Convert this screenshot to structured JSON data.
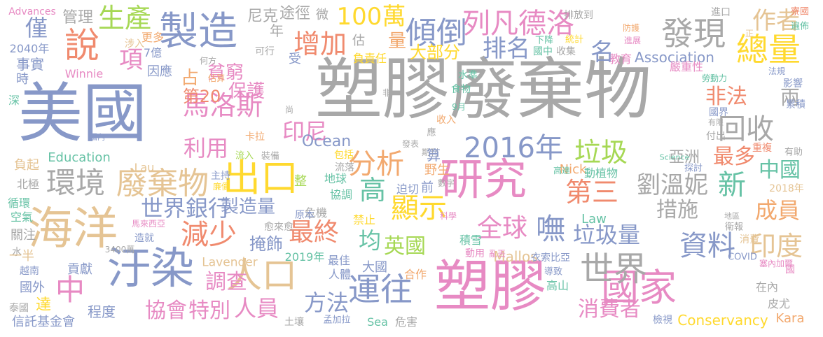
{
  "palette": {
    "gray": "#a8a8a8",
    "blue": "#8798c8",
    "salmon": "#f08a6e",
    "orange": "#f2a96f",
    "teal": "#66c2a5",
    "green": "#a6d854",
    "yellow": "#ffd92f",
    "tan": "#e5c494",
    "pink": "#e78ac3"
  },
  "words": [
    {
      "text": "塑膠廢棄物",
      "color": "gray"
    },
    {
      "text": "美國",
      "color": "blue"
    },
    {
      "text": "塑膠",
      "color": "pink"
    },
    {
      "text": "研究",
      "color": "pink"
    },
    {
      "text": "製造",
      "color": "blue"
    },
    {
      "text": "海洋",
      "color": "tan"
    },
    {
      "text": "汙染",
      "color": "blue"
    },
    {
      "text": "出口",
      "color": "yellow"
    },
    {
      "text": "國家",
      "color": "pink"
    },
    {
      "text": "世界",
      "color": "gray"
    },
    {
      "text": "廢棄物",
      "color": "tan"
    },
    {
      "text": "環境",
      "color": "gray"
    },
    {
      "text": "人口",
      "color": "tan"
    },
    {
      "text": "運往",
      "color": "blue"
    },
    {
      "text": "發現",
      "color": "gray"
    },
    {
      "text": "總量",
      "color": "yellow"
    },
    {
      "text": "說",
      "color": "salmon"
    },
    {
      "text": "生產",
      "color": "green"
    },
    {
      "text": "傾倒",
      "color": "blue"
    },
    {
      "text": "列凡德洛",
      "color": "pink"
    },
    {
      "text": "增加",
      "color": "salmon"
    },
    {
      "text": "100萬",
      "color": "yellow"
    },
    {
      "text": "作者",
      "color": "tan"
    },
    {
      "text": "2016年",
      "color": "blue"
    },
    {
      "text": "垃圾",
      "color": "green"
    },
    {
      "text": "分析",
      "color": "orange"
    },
    {
      "text": "高",
      "color": "teal"
    },
    {
      "text": "顯示",
      "color": "yellow"
    },
    {
      "text": "第三",
      "color": "salmon"
    },
    {
      "text": "劉溫妮",
      "color": "gray"
    },
    {
      "text": "新",
      "color": "teal"
    },
    {
      "text": "回收",
      "color": "gray"
    },
    {
      "text": "非法",
      "color": "salmon"
    },
    {
      "text": "中國",
      "color": "teal"
    },
    {
      "text": "最多",
      "color": "salmon"
    },
    {
      "text": "資料",
      "color": "blue"
    },
    {
      "text": "印度",
      "color": "tan"
    },
    {
      "text": "成員",
      "color": "orange"
    },
    {
      "text": "全球",
      "color": "pink"
    },
    {
      "text": "嘸",
      "color": "blue"
    },
    {
      "text": "垃圾量",
      "color": "blue"
    },
    {
      "text": "最終",
      "color": "salmon"
    },
    {
      "text": "減少",
      "color": "salmon"
    },
    {
      "text": "中",
      "color": "pink"
    },
    {
      "text": "世界銀行",
      "color": "blue"
    },
    {
      "text": "馬洛斯",
      "color": "pink"
    },
    {
      "text": "印尼",
      "color": "pink"
    },
    {
      "text": "利用",
      "color": "pink"
    },
    {
      "text": "調查",
      "color": "pink"
    },
    {
      "text": "協會",
      "color": "pink"
    },
    {
      "text": "特別",
      "color": "pink"
    },
    {
      "text": "人員",
      "color": "pink"
    },
    {
      "text": "方法",
      "color": "blue"
    },
    {
      "text": "消費者",
      "color": "pink"
    },
    {
      "text": "項",
      "color": "pink"
    },
    {
      "text": "貧窮",
      "color": "pink"
    },
    {
      "text": "保護",
      "color": "pink"
    },
    {
      "text": "第20",
      "color": "salmon"
    },
    {
      "text": "占",
      "color": "orange"
    },
    {
      "text": "名",
      "color": "blue"
    },
    {
      "text": "排名",
      "color": "blue"
    },
    {
      "text": "措施",
      "color": "gray"
    },
    {
      "text": "英國",
      "color": "green"
    },
    {
      "text": "均",
      "color": "teal"
    },
    {
      "text": "製造量",
      "color": "blue"
    },
    {
      "text": "掩飾",
      "color": "blue"
    },
    {
      "text": "大部分",
      "color": "yellow"
    },
    {
      "text": "僅",
      "color": "blue"
    },
    {
      "text": "管理",
      "color": "gray"
    },
    {
      "text": "尼克",
      "color": "gray"
    },
    {
      "text": "途徑",
      "color": "gray"
    },
    {
      "text": "微",
      "color": "gray"
    },
    {
      "text": "量",
      "color": "orange"
    },
    {
      "text": "年",
      "color": "gray"
    },
    {
      "text": "兩",
      "color": "gray"
    },
    {
      "text": "亞洲",
      "color": "gray"
    },
    {
      "text": "Ocean",
      "color": "blue"
    },
    {
      "text": "Education",
      "color": "teal"
    },
    {
      "text": "Association",
      "color": "blue"
    },
    {
      "text": "Conservancy",
      "color": "yellow"
    },
    {
      "text": "Lavender",
      "color": "tan"
    },
    {
      "text": "Mallos",
      "color": "tan"
    },
    {
      "text": "Nick",
      "color": "orange"
    },
    {
      "text": "Kara",
      "color": "orange"
    },
    {
      "text": "Law",
      "color": "teal"
    },
    {
      "text": "Sea",
      "color": "teal"
    },
    {
      "text": "Winnie",
      "color": "pink"
    },
    {
      "text": "Lau",
      "color": "tan"
    },
    {
      "text": "Advances",
      "color": "pink"
    },
    {
      "text": "2040年",
      "color": "blue"
    },
    {
      "text": "2019年",
      "color": "teal"
    },
    {
      "text": "2018年",
      "color": "tan"
    },
    {
      "text": "事實",
      "color": "blue"
    },
    {
      "text": "時",
      "color": "blue"
    },
    {
      "text": "深",
      "color": "teal"
    },
    {
      "text": "負起",
      "color": "tan"
    },
    {
      "text": "北極",
      "color": "gray"
    },
    {
      "text": "循環",
      "color": "teal"
    },
    {
      "text": "空氣",
      "color": "teal"
    },
    {
      "text": "關注",
      "color": "gray"
    },
    {
      "text": "水",
      "color": "gray"
    },
    {
      "text": "一半",
      "color": "tan"
    },
    {
      "text": "越南",
      "color": "blue"
    },
    {
      "text": "國外",
      "color": "blue"
    },
    {
      "text": "達",
      "color": "yellow"
    },
    {
      "text": "泰國",
      "color": "gray"
    },
    {
      "text": "信託基金會",
      "color": "blue"
    },
    {
      "text": "貢獻",
      "color": "blue"
    },
    {
      "text": "程度",
      "color": "blue"
    },
    {
      "text": "因應",
      "color": "blue"
    },
    {
      "text": "7億",
      "color": "blue"
    },
    {
      "text": "更多",
      "color": "orange"
    },
    {
      "text": "涉入",
      "color": "tan"
    },
    {
      "text": "何方",
      "color": "gray"
    },
    {
      "text": "可行",
      "color": "gray"
    },
    {
      "text": "估算",
      "color": "orange"
    },
    {
      "text": "估",
      "color": "gray"
    },
    {
      "text": "受",
      "color": "blue"
    },
    {
      "text": "負責任",
      "color": "yellow"
    },
    {
      "text": "尚",
      "color": "gray"
    },
    {
      "text": "非",
      "color": "gray"
    },
    {
      "text": "卡拉",
      "color": "orange"
    },
    {
      "text": "流入",
      "color": "green"
    },
    {
      "text": "裝備",
      "color": "gray"
    },
    {
      "text": "主持",
      "color": "blue"
    },
    {
      "text": "廉價",
      "color": "yellow"
    },
    {
      "text": "發表",
      "color": "gray"
    },
    {
      "text": "期刊",
      "color": "gray"
    },
    {
      "text": "應",
      "color": "gray"
    },
    {
      "text": "包括",
      "color": "yellow"
    },
    {
      "text": "流落",
      "color": "gray"
    },
    {
      "text": "算",
      "color": "blue"
    },
    {
      "text": "野生",
      "color": "orange"
    },
    {
      "text": "前",
      "color": "blue"
    },
    {
      "text": "迫切",
      "color": "blue"
    },
    {
      "text": "數字",
      "color": "gray"
    },
    {
      "text": "整",
      "color": "green"
    },
    {
      "text": "地球",
      "color": "teal"
    },
    {
      "text": "協調",
      "color": "teal"
    },
    {
      "text": "危機",
      "color": "gray"
    },
    {
      "text": "原本",
      "color": "blue"
    },
    {
      "text": "禁止",
      "color": "yellow"
    },
    {
      "text": "科學",
      "color": "pink"
    },
    {
      "text": "愈來愈",
      "color": "gray"
    },
    {
      "text": "積雪",
      "color": "teal"
    },
    {
      "text": "動用",
      "color": "pink"
    },
    {
      "text": "亂丟",
      "color": "pink"
    },
    {
      "text": "衣索比亞",
      "color": "blue"
    },
    {
      "text": "人體",
      "color": "blue"
    },
    {
      "text": "最佳",
      "color": "blue"
    },
    {
      "text": "合作",
      "color": "orange"
    },
    {
      "text": "大國",
      "color": "blue"
    },
    {
      "text": "高山",
      "color": "teal"
    },
    {
      "text": "導致",
      "color": "blue"
    },
    {
      "text": "土壤",
      "color": "gray"
    },
    {
      "text": "孟加拉",
      "color": "blue"
    },
    {
      "text": "危害",
      "color": "gray"
    },
    {
      "text": "檢視",
      "color": "blue"
    },
    {
      "text": "馬來西亞",
      "color": "pink"
    },
    {
      "text": "造就",
      "color": "blue"
    },
    {
      "text": "3400萬",
      "color": "gray"
    },
    {
      "text": "COVID",
      "color": "blue"
    },
    {
      "text": "塞內加爾",
      "color": "pink"
    },
    {
      "text": "國",
      "color": "pink"
    },
    {
      "text": "在內",
      "color": "gray"
    },
    {
      "text": "皮尤",
      "color": "gray"
    },
    {
      "text": "地區",
      "color": "gray"
    },
    {
      "text": "衛報",
      "color": "gray"
    },
    {
      "text": "消費",
      "color": "tan"
    },
    {
      "text": "動植物",
      "color": "teal"
    },
    {
      "text": "高達",
      "color": "teal"
    },
    {
      "text": "探討",
      "color": "blue"
    },
    {
      "text": "有助",
      "color": "gray"
    },
    {
      "text": "重複",
      "color": "salmon"
    },
    {
      "text": "付出",
      "color": "gray"
    },
    {
      "text": "有限",
      "color": "gray"
    },
    {
      "text": "國界",
      "color": "blue"
    },
    {
      "text": "累積",
      "color": "blue"
    },
    {
      "text": "影響",
      "color": "blue"
    },
    {
      "text": "法規",
      "color": "blue"
    },
    {
      "text": "勞動力",
      "color": "teal"
    },
    {
      "text": "嚴重性",
      "color": "pink"
    },
    {
      "text": "教育",
      "color": "pink"
    },
    {
      "text": "收集",
      "color": "gray"
    },
    {
      "text": "統計",
      "color": "yellow"
    },
    {
      "text": "下降",
      "color": "teal"
    },
    {
      "text": "國中",
      "color": "teal"
    },
    {
      "text": "排放到",
      "color": "gray"
    },
    {
      "text": "進口",
      "color": "gray"
    },
    {
      "text": "寮國",
      "color": "salmon"
    },
    {
      "text": "遍佈",
      "color": "teal"
    },
    {
      "text": "正",
      "color": "tan"
    },
    {
      "text": "防護",
      "color": "orange"
    },
    {
      "text": "進展",
      "color": "pink"
    },
    {
      "text": "水準",
      "color": "teal"
    },
    {
      "text": "食物",
      "color": "teal"
    },
    {
      "text": "9月",
      "color": "teal"
    },
    {
      "text": "收入",
      "color": "orange"
    },
    {
      "text": "Science",
      "color": "teal"
    },
    {
      "text": "國內",
      "color": "blue"
    }
  ]
}
